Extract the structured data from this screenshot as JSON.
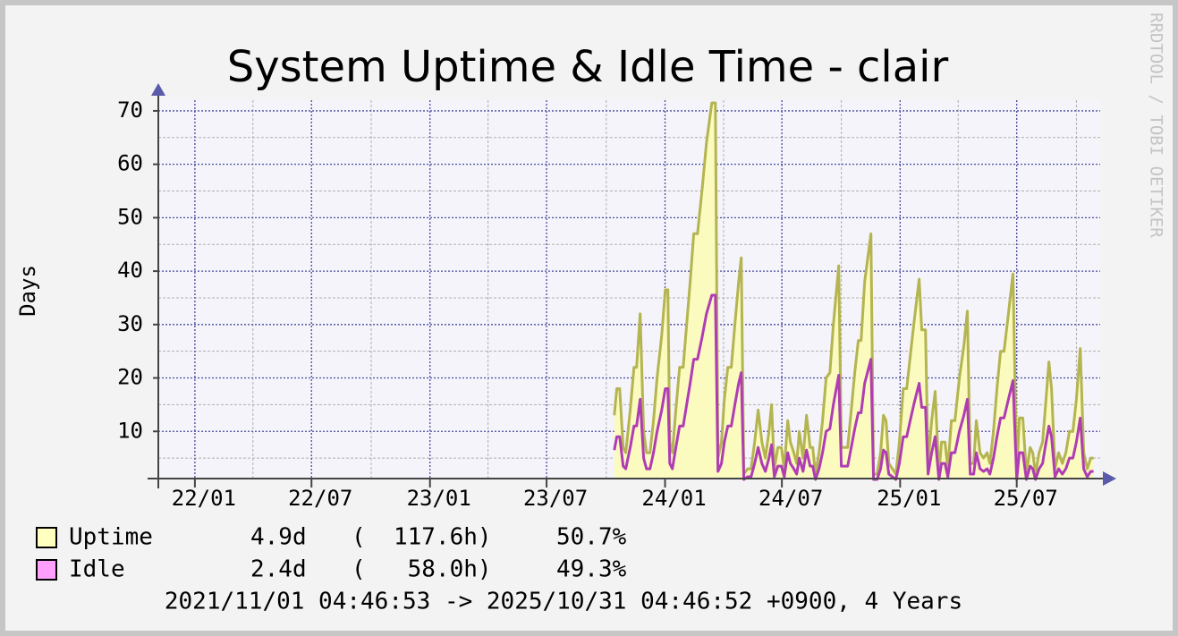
{
  "chart_data": {
    "type": "area-line",
    "title": "System Uptime & Idle Time - clair",
    "y_label": "Days",
    "watermark": "RRDTOOL / TOBI OETIKER",
    "footer": "2021/11/01 04:46:53 -> 2025/10/31 04:46:52 +0900, 4 Years",
    "xlim": [
      2021.833,
      2025.832
    ],
    "ylim": [
      1,
      72
    ],
    "xticks": [
      {
        "value": 2022.0,
        "label": "22/01"
      },
      {
        "value": 2022.496,
        "label": "22/07"
      },
      {
        "value": 2023.0,
        "label": "23/01"
      },
      {
        "value": 2023.496,
        "label": "23/07"
      },
      {
        "value": 2024.0,
        "label": "24/01"
      },
      {
        "value": 2024.497,
        "label": "24/07"
      },
      {
        "value": 2025.0,
        "label": "25/01"
      },
      {
        "value": 2025.496,
        "label": "25/07"
      }
    ],
    "x_minor_ticks": [
      2022.247,
      2022.75,
      2023.247,
      2023.75,
      2024.249,
      2024.75,
      2025.247,
      2025.75
    ],
    "yticks": [
      10,
      20,
      30,
      40,
      50,
      60,
      70
    ],
    "y_minor_ticks": [
      5,
      15,
      25,
      35,
      45,
      55,
      65
    ],
    "grid": true,
    "x": [
      2023.784,
      2023.795,
      2023.807,
      2023.822,
      2023.833,
      2023.852,
      2023.868,
      2023.879,
      2023.894,
      2023.909,
      2023.921,
      2023.936,
      2023.951,
      2023.966,
      2023.986,
      2024.001,
      2024.012,
      2024.02,
      2024.031,
      2024.046,
      2024.062,
      2024.077,
      2024.092,
      2024.107,
      2024.122,
      2024.138,
      2024.157,
      2024.176,
      2024.199,
      2024.214,
      2024.225,
      2024.24,
      2024.252,
      2024.267,
      2024.282,
      2024.297,
      2024.313,
      2024.324,
      2024.335,
      2024.351,
      2024.366,
      2024.381,
      2024.396,
      2024.412,
      2024.427,
      2024.442,
      2024.453,
      2024.465,
      2024.48,
      2024.495,
      2024.507,
      2024.522,
      2024.533,
      2024.548,
      2024.56,
      2024.571,
      2024.587,
      2024.602,
      2024.617,
      2024.628,
      2024.64,
      2024.655,
      2024.67,
      2024.685,
      2024.701,
      2024.716,
      2024.739,
      2024.75,
      2024.765,
      2024.777,
      2024.792,
      2024.807,
      2024.822,
      2024.834,
      2024.849,
      2024.876,
      2024.887,
      2024.902,
      2024.917,
      2024.929,
      2024.94,
      2024.952,
      2024.967,
      2024.982,
      2024.997,
      2025.013,
      2025.028,
      2025.043,
      2025.058,
      2025.081,
      2025.092,
      2025.108,
      2025.119,
      2025.134,
      2025.149,
      2025.165,
      2025.176,
      2025.191,
      2025.203,
      2025.218,
      2025.233,
      2025.252,
      2025.271,
      2025.286,
      2025.298,
      2025.313,
      2025.324,
      2025.34,
      2025.355,
      2025.37,
      2025.382,
      2025.397,
      2025.412,
      2025.427,
      2025.442,
      2025.458,
      2025.48,
      2025.496,
      2025.507,
      2025.522,
      2025.537,
      2025.553,
      2025.564,
      2025.576,
      2025.591,
      2025.606,
      2025.617,
      2025.633,
      2025.644,
      2025.659,
      2025.674,
      2025.69,
      2025.705,
      2025.72,
      2025.735,
      2025.75,
      2025.766,
      2025.781,
      2025.796,
      2025.811,
      2025.823
    ],
    "series": [
      {
        "name": "Uptime",
        "color": "#b4b450",
        "fill": "#fbfbc0",
        "legend_color": "#ffffc0",
        "average": "4.9d",
        "hours": "(  117.6h)",
        "percent": "50.7%",
        "values": [
          13,
          18,
          18,
          7,
          6,
          14,
          22,
          22,
          32,
          10,
          6,
          6,
          12,
          20,
          28,
          36.5,
          36.5,
          8,
          6,
          14,
          22,
          22,
          30,
          38,
          47,
          47,
          55,
          64,
          71.5,
          71.5,
          5,
          8,
          16,
          22,
          22,
          30,
          38,
          42.5,
          2,
          3,
          3,
          8,
          14,
          8,
          5,
          10,
          15,
          3,
          7,
          7,
          3,
          12,
          8,
          6,
          4,
          10,
          5,
          13,
          7,
          7,
          2,
          6,
          12,
          20,
          21,
          30,
          41,
          7,
          7,
          7,
          14,
          21,
          27,
          27,
          38,
          47,
          2,
          2,
          6,
          13,
          12,
          4,
          3,
          2,
          8,
          18,
          18,
          24,
          30,
          38.5,
          29,
          29,
          4,
          12,
          17.5,
          2,
          8,
          8,
          3,
          12,
          12,
          20,
          26,
          32.5,
          4,
          4,
          12,
          6,
          5,
          6,
          4,
          10,
          18,
          25,
          25,
          31,
          39.5,
          2,
          12.5,
          12.5,
          2,
          7,
          6,
          2,
          6,
          8,
          14,
          23,
          18,
          3,
          6,
          4,
          6,
          10,
          10,
          16,
          25.5,
          6,
          3,
          5,
          5
        ]
      },
      {
        "name": "Idle",
        "color": "#b03cb4",
        "legend_color": "#ffa0ff",
        "average": "2.4d",
        "hours": "(   58.0h)",
        "percent": "49.3%",
        "values": [
          6.5,
          9,
          9,
          3.5,
          3,
          7,
          11,
          11,
          16,
          5,
          3,
          3,
          6,
          10,
          14,
          18,
          18,
          4,
          3,
          7,
          11,
          11,
          15,
          19,
          23.5,
          23.5,
          27.5,
          32,
          35.5,
          35.5,
          2.5,
          4,
          8,
          11,
          11,
          15,
          19,
          21,
          1,
          1.5,
          1.5,
          4,
          7,
          4,
          2.5,
          5,
          7.5,
          1.5,
          3.5,
          3.5,
          1.5,
          6,
          4,
          3,
          2,
          5,
          2.5,
          6.5,
          3.5,
          3.5,
          1,
          3,
          6,
          10,
          10.5,
          15,
          20.5,
          3.5,
          3.5,
          3.5,
          7,
          10.5,
          13.5,
          13.5,
          19,
          23.5,
          1,
          1,
          3,
          6.5,
          6,
          2,
          1.5,
          1,
          4,
          9,
          9,
          12,
          15,
          19,
          14.5,
          14.5,
          2,
          6,
          9,
          1,
          4,
          4,
          1.5,
          6,
          6,
          10,
          13,
          16,
          2,
          2,
          6,
          3,
          2.5,
          3,
          2,
          5,
          9,
          12.5,
          12.5,
          15.5,
          19.5,
          1,
          6,
          6,
          1,
          3.5,
          3,
          1,
          3,
          4,
          7,
          11,
          9,
          1.5,
          3,
          2,
          3,
          5,
          5,
          8,
          12.5,
          3,
          1.5,
          2.5,
          2.5
        ]
      }
    ]
  }
}
